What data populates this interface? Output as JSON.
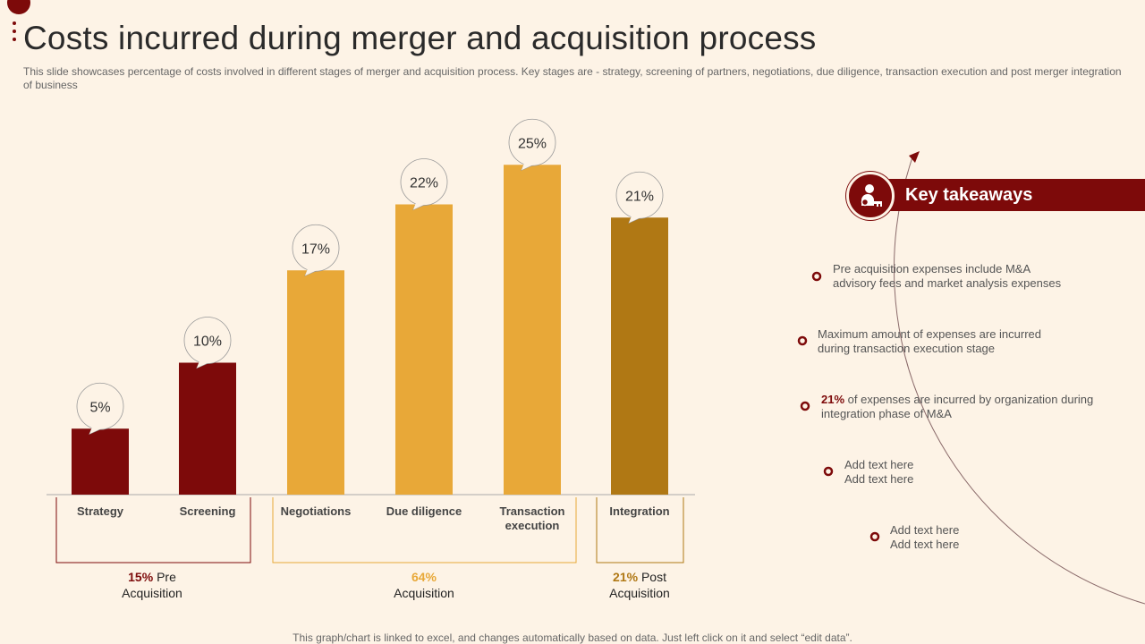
{
  "page": {
    "title": "Costs incurred during merger and acquisition process",
    "subtitle": "This slide showcases percentage of costs involved in different stages of merger and acquisition process. Key stages are - strategy,  screening of partners, negotiations, due diligence, transaction execution and post merger integration of business",
    "footer": "This graph/chart is linked to excel,  and changes automatically based on data. Just left click on it and select “edit data”."
  },
  "chart_data": {
    "type": "bar",
    "title": "",
    "xlabel": "",
    "ylabel": "",
    "ylim": [
      0,
      30
    ],
    "categories": [
      "Strategy",
      "Screening",
      "Negotiations",
      "Due diligence",
      "Transaction execution",
      "Integration"
    ],
    "values": [
      5,
      10,
      17,
      22,
      25,
      21
    ],
    "value_labels": [
      "5%",
      "10%",
      "17%",
      "22%",
      "25%",
      "21%"
    ],
    "bar_colors": [
      "#7d0a0a",
      "#7d0a0a",
      "#e8a838",
      "#e8a838",
      "#e8a838",
      "#b07814"
    ],
    "grid": false
  },
  "groups": [
    {
      "pct": "15%",
      "text": "Pre",
      "line2": "Acquisition",
      "color": "#7d0a0a"
    },
    {
      "pct": "64%",
      "text": "",
      "line2": "Acquisition",
      "color": "#e8a838"
    },
    {
      "pct": "21%",
      "text": "Post",
      "line2": "Acquisition",
      "color": "#b07814"
    }
  ],
  "takeaways": {
    "header": "Key takeaways",
    "icon": "user-key-icon",
    "items": [
      {
        "line1": "Pre acquisition expenses include M&A",
        "line2": "advisory fees and market analysis expenses"
      },
      {
        "line1": "Maximum amount of expenses are incurred",
        "line2": "during transaction execution stage"
      },
      {
        "hl": "21%",
        "line1": " of expenses are incurred  by organization  during",
        "line2": "integration phase of M&A"
      },
      {
        "line1": "Add text here",
        "line2": "Add text here"
      },
      {
        "line1": "Add text here",
        "line2": "Add text here"
      }
    ]
  },
  "colors": {
    "dark_red": "#7d0a0a",
    "gold": "#e8a838",
    "dark_gold": "#b07814",
    "background": "#fdf3e6"
  }
}
